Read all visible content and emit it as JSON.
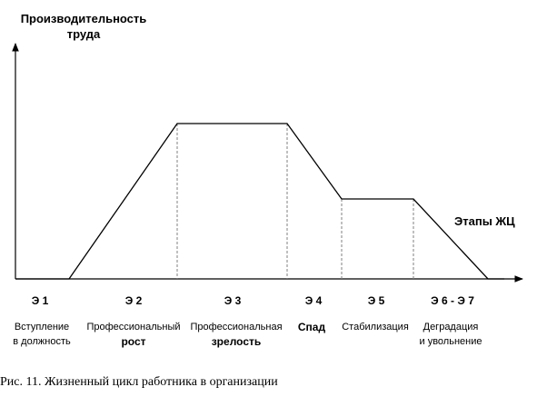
{
  "diagram": {
    "y_axis_title_line1": "Производительность",
    "y_axis_title_line2": "труда",
    "x_axis_title": "Этапы ЖЦ",
    "stages": [
      {
        "code": "Э 1",
        "line1": "Вступление",
        "line2": "в должность",
        "line2_bold": false
      },
      {
        "code": "Э 2",
        "line1": "Профессиональный",
        "line2": "рост",
        "line2_bold": true
      },
      {
        "code": "Э 3",
        "line1": "Профессиональная",
        "line2": "зрелость",
        "line2_bold": true
      },
      {
        "code": "Э 4",
        "line1": "Спад",
        "line2": "",
        "line1_bold": true
      },
      {
        "code": "Э 5",
        "line1": "Стабилизация",
        "line2": ""
      },
      {
        "code": "Э 6 - Э 7",
        "line1": "Деградация",
        "line2": "и увольнение"
      }
    ],
    "productivity_levels": {
      "start": 0,
      "peak": 1,
      "plateau": 0.5,
      "end": 0
    },
    "caption": "Рис. 11. Жизненный цикл работника в организации",
    "line_color": "#000000",
    "dash_color": "#808080"
  }
}
